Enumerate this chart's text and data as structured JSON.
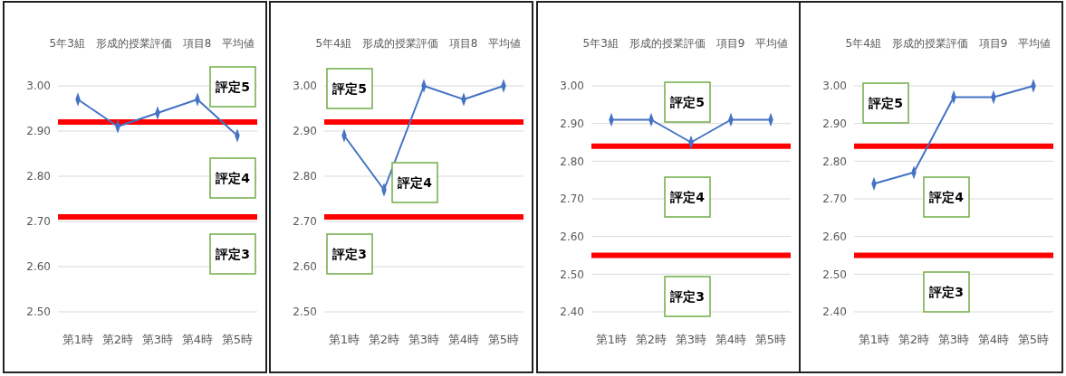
{
  "chart_data": [
    {
      "type": "line",
      "title": "5年3組　形成的授業評価　項目8　平均値",
      "categories": [
        "第1時",
        "第2時",
        "第3時",
        "第4時",
        "第5時"
      ],
      "series": [
        {
          "color": "#4472c4",
          "values": [
            2.97,
            2.91,
            2.94,
            2.97,
            2.89
          ]
        }
      ],
      "ylim": [
        2.5,
        3.0
      ],
      "yticks": [
        {
          "value": 2.5,
          "label": "2.50"
        },
        {
          "value": 2.6,
          "label": "2.60"
        },
        {
          "value": 2.7,
          "label": "2.70"
        },
        {
          "value": 2.8,
          "label": "2.80"
        },
        {
          "value": 2.9,
          "label": "2.90"
        },
        {
          "value": 3.0,
          "label": "3.00"
        }
      ],
      "grid": "y",
      "marker": "diamond",
      "ref_lines": [
        {
          "axis": "y",
          "value": 2.92,
          "color": "#ff0000"
        },
        {
          "axis": "y",
          "value": 2.71,
          "color": "#ff0000"
        }
      ],
      "annotations": [
        "評定5",
        "評定4",
        "評定3"
      ]
    },
    {
      "type": "line",
      "title": "5年4組　形成的授業評価　項目8　平均値",
      "categories": [
        "第1時",
        "第2時",
        "第3時",
        "第4時",
        "第5時"
      ],
      "series": [
        {
          "color": "#4472c4",
          "values": [
            2.89,
            2.77,
            3.0,
            2.97,
            3.0
          ]
        }
      ],
      "ylim": [
        2.5,
        3.0
      ],
      "yticks": [
        {
          "value": 2.5,
          "label": "2.50"
        },
        {
          "value": 2.6,
          "label": "2.60"
        },
        {
          "value": 2.7,
          "label": "2.70"
        },
        {
          "value": 2.8,
          "label": "2.80"
        },
        {
          "value": 2.9,
          "label": "2.90"
        },
        {
          "value": 3.0,
          "label": "3.00"
        }
      ],
      "grid": "y",
      "marker": "diamond",
      "ref_lines": [
        {
          "axis": "y",
          "value": 2.92,
          "color": "#ff0000"
        },
        {
          "axis": "y",
          "value": 2.71,
          "color": "#ff0000"
        }
      ],
      "annotations": [
        "評定5",
        "評定4",
        "評定3"
      ]
    },
    {
      "type": "line",
      "title": "5年3組　形成的授業評価　項目9　平均値",
      "categories": [
        "第1時",
        "第2時",
        "第3時",
        "第4時",
        "第5時"
      ],
      "series": [
        {
          "color": "#4472c4",
          "values": [
            2.91,
            2.91,
            2.85,
            2.91,
            2.91
          ]
        }
      ],
      "ylim": [
        2.4,
        3.0
      ],
      "yticks": [
        {
          "value": 2.4,
          "label": "2.40"
        },
        {
          "value": 2.5,
          "label": "2.50"
        },
        {
          "value": 2.6,
          "label": "2.60"
        },
        {
          "value": 2.7,
          "label": "2.70"
        },
        {
          "value": 2.8,
          "label": "2.80"
        },
        {
          "value": 2.9,
          "label": "2.90"
        },
        {
          "value": 3.0,
          "label": "3.00"
        }
      ],
      "grid": "y",
      "marker": "diamond",
      "ref_lines": [
        {
          "axis": "y",
          "value": 2.84,
          "color": "#ff0000"
        },
        {
          "axis": "y",
          "value": 2.55,
          "color": "#ff0000"
        }
      ],
      "annotations": [
        "評定5",
        "評定4",
        "評定3"
      ]
    },
    {
      "type": "line",
      "title": "5年4組　形成的授業評価　項目9　平均値",
      "categories": [
        "第1時",
        "第2時",
        "第3時",
        "第4時",
        "第5時"
      ],
      "series": [
        {
          "color": "#4472c4",
          "values": [
            2.74,
            2.77,
            2.97,
            2.97,
            3.0
          ]
        }
      ],
      "ylim": [
        2.4,
        3.0
      ],
      "yticks": [
        {
          "value": 2.4,
          "label": "2.40"
        },
        {
          "value": 2.5,
          "label": "2.50"
        },
        {
          "value": 2.6,
          "label": "2.60"
        },
        {
          "value": 2.7,
          "label": "2.70"
        },
        {
          "value": 2.8,
          "label": "2.80"
        },
        {
          "value": 2.9,
          "label": "2.90"
        },
        {
          "value": 3.0,
          "label": "3.00"
        }
      ],
      "grid": "y",
      "marker": "diamond",
      "ref_lines": [
        {
          "axis": "y",
          "value": 2.84,
          "color": "#ff0000"
        },
        {
          "axis": "y",
          "value": 2.55,
          "color": "#ff0000"
        }
      ],
      "annotations": [
        "評定5",
        "評定4",
        "評定3"
      ]
    }
  ]
}
